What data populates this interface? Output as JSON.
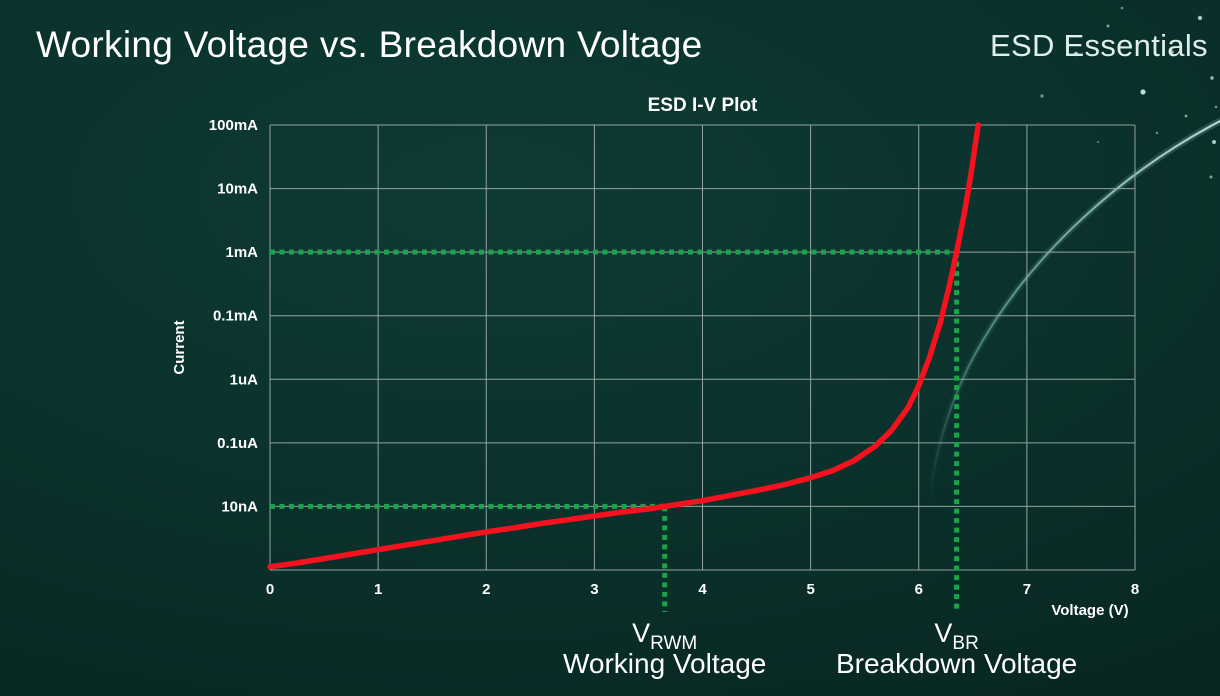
{
  "header": {
    "title": "Working Voltage vs. Breakdown Voltage",
    "brand": "ESD Essentials"
  },
  "colors": {
    "background": "#0a2e29",
    "grid": "#93a39f",
    "curve_red": "#f5121e",
    "accent_green": "#1da14b",
    "text": "#ffffff",
    "brand_text": "#ddeeec"
  },
  "chart_data": {
    "type": "line",
    "title": "ESD I-V Plot",
    "xlabel": "Voltage (V)",
    "ylabel": "Current",
    "xlim": [
      0,
      8
    ],
    "x_ticks": [
      0,
      1,
      2,
      3,
      4,
      5,
      6,
      7,
      8
    ],
    "y_scale": "log",
    "y_tick_labels": [
      "100mA",
      "10mA",
      "1mA",
      "0.1mA",
      "1uA",
      "0.1uA",
      "10nA"
    ],
    "grid": true,
    "series": [
      {
        "name": "ESD I-V curve",
        "color": "#f5121e",
        "points_units": "x in volts, y in grid decades above bottom axis (10nA=1, 1mA=5, 100mA=7)",
        "points": [
          [
            0,
            0.05
          ],
          [
            0.25,
            0.11
          ],
          [
            0.5,
            0.18
          ],
          [
            0.75,
            0.25
          ],
          [
            1,
            0.32
          ],
          [
            1.25,
            0.39
          ],
          [
            1.5,
            0.46
          ],
          [
            1.75,
            0.53
          ],
          [
            2,
            0.6
          ],
          [
            2.25,
            0.66
          ],
          [
            2.5,
            0.73
          ],
          [
            2.75,
            0.79
          ],
          [
            3,
            0.85
          ],
          [
            3.25,
            0.91
          ],
          [
            3.5,
            0.96
          ],
          [
            3.65,
            1
          ],
          [
            4,
            1.09
          ],
          [
            4.25,
            1.17
          ],
          [
            4.5,
            1.25
          ],
          [
            4.75,
            1.34
          ],
          [
            5,
            1.45
          ],
          [
            5.2,
            1.56
          ],
          [
            5.4,
            1.72
          ],
          [
            5.6,
            1.95
          ],
          [
            5.75,
            2.2
          ],
          [
            5.9,
            2.55
          ],
          [
            6,
            2.9
          ],
          [
            6.1,
            3.35
          ],
          [
            6.2,
            3.9
          ],
          [
            6.28,
            4.45
          ],
          [
            6.35,
            5
          ],
          [
            6.42,
            5.6
          ],
          [
            6.48,
            6.2
          ],
          [
            6.55,
            7
          ]
        ]
      }
    ],
    "annotations": [
      {
        "id": "vrwm",
        "x": 3.65,
        "y": 1,
        "level_label": "10nA",
        "prefix": "V",
        "sub": "RWM",
        "caption": "Working Voltage",
        "color": "#1da14b"
      },
      {
        "id": "vbr",
        "x": 6.35,
        "y": 5,
        "level_label": "1mA",
        "prefix": "V",
        "sub": "BR",
        "caption": "Breakdown Voltage",
        "color": "#1da14b"
      }
    ]
  }
}
